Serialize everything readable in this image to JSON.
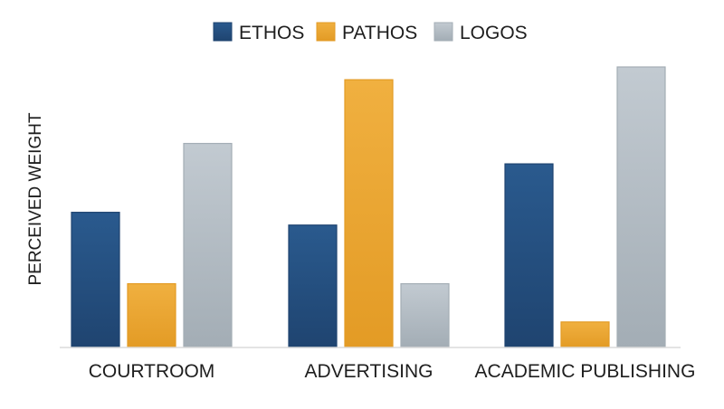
{
  "chart_data": {
    "type": "bar",
    "title": "",
    "xlabel": "",
    "ylabel": "PERCEIVED WEIGHT",
    "categories": [
      "COURTROOM",
      "ADVERTISING",
      "ACADEMIC PUBLISHING"
    ],
    "series": [
      {
        "name": "ETHOS",
        "color": "#1f4470",
        "color_light": "#2a5a8e",
        "values": [
          5.3,
          4.8,
          7.2
        ]
      },
      {
        "name": "PATHOS",
        "color": "#e39b25",
        "color_light": "#f0b040",
        "values": [
          2.5,
          10.5,
          1.0
        ]
      },
      {
        "name": "LOGOS",
        "color": "#a3adb5",
        "color_light": "#c2cad1",
        "values": [
          8.0,
          2.5,
          11.0
        ]
      }
    ],
    "ylim": [
      0,
      11.0
    ],
    "y_ticks_shown": false,
    "grid": false,
    "legend_position": "top-center"
  }
}
